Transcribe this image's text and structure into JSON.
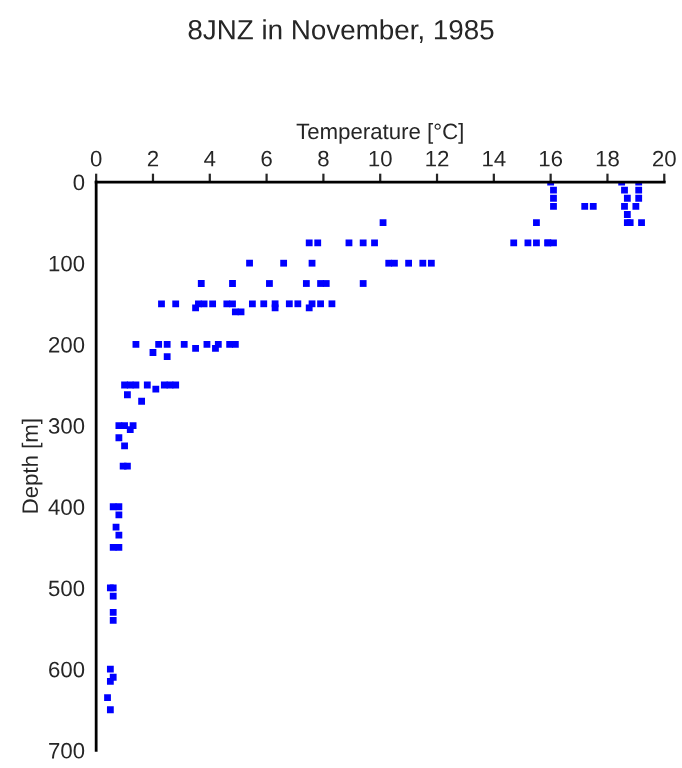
{
  "chart_data": {
    "type": "scatter",
    "title": "8JNZ in November, 1985",
    "xlabel": "Temperature [°C]",
    "ylabel": "Depth [m]",
    "xlim": [
      0,
      20
    ],
    "xticks": [
      0,
      2,
      4,
      6,
      8,
      10,
      12,
      14,
      16,
      18,
      20
    ],
    "ylim": [
      700,
      0
    ],
    "yticks": [
      0,
      100,
      200,
      300,
      400,
      500,
      600,
      700
    ],
    "grid": false,
    "marker": "square",
    "series": [
      {
        "color": "#0000ff",
        "x": [
          16.0,
          16.1,
          16.1,
          16.1,
          15.9,
          17.2,
          17.5,
          18.5,
          18.6,
          18.7,
          18.6,
          18.7,
          18.8,
          19.1,
          19.1,
          19.1,
          19.0,
          10.1,
          15.5,
          18.7,
          19.2,
          7.5,
          7.8,
          8.9,
          9.4,
          9.8,
          14.7,
          15.2,
          15.5,
          15.9,
          16.1,
          5.4,
          6.6,
          7.6,
          10.3,
          10.5,
          11.0,
          11.5,
          11.8,
          3.7,
          4.8,
          6.1,
          7.4,
          7.9,
          8.1,
          9.4,
          2.3,
          2.8,
          3.6,
          3.8,
          4.1,
          4.6,
          4.8,
          5.5,
          5.9,
          6.3,
          6.8,
          7.1,
          7.6,
          7.9,
          8.3,
          3.5,
          6.3,
          7.5,
          4.9,
          5.1,
          1.4,
          2.2,
          2.5,
          3.1,
          3.9,
          4.3,
          4.7,
          4.9,
          3.5,
          4.2,
          2.0,
          2.5,
          1.0,
          1.2,
          1.4,
          1.8,
          2.4,
          2.6,
          2.8,
          2.1,
          1.1,
          1.6,
          0.8,
          1.0,
          1.3,
          1.2,
          0.8,
          1.0,
          0.95,
          1.1,
          0.6,
          0.8,
          0.8,
          0.7,
          0.8,
          0.6,
          0.8,
          0.5,
          0.6,
          0.6,
          0.6,
          0.6,
          0.5,
          0.6,
          0.5,
          0.4,
          0.5
        ],
        "values": [
          0,
          10,
          20,
          30,
          75,
          30,
          30,
          0,
          10,
          20,
          30,
          40,
          50,
          0,
          10,
          20,
          30,
          50,
          50,
          50,
          50,
          75,
          75,
          75,
          75,
          75,
          75,
          75,
          75,
          75,
          75,
          100,
          100,
          100,
          100,
          100,
          100,
          100,
          100,
          125,
          125,
          125,
          125,
          125,
          125,
          125,
          150,
          150,
          150,
          150,
          150,
          150,
          150,
          150,
          150,
          150,
          150,
          150,
          150,
          150,
          150,
          155,
          155,
          155,
          160,
          160,
          200,
          200,
          200,
          200,
          200,
          200,
          200,
          200,
          205,
          205,
          210,
          215,
          250,
          250,
          250,
          250,
          250,
          250,
          250,
          255,
          262,
          270,
          300,
          300,
          300,
          305,
          315,
          325,
          350,
          350,
          400,
          400,
          410,
          425,
          435,
          450,
          450,
          500,
          500,
          510,
          530,
          540,
          600,
          610,
          615,
          635,
          650
        ]
      }
    ]
  }
}
